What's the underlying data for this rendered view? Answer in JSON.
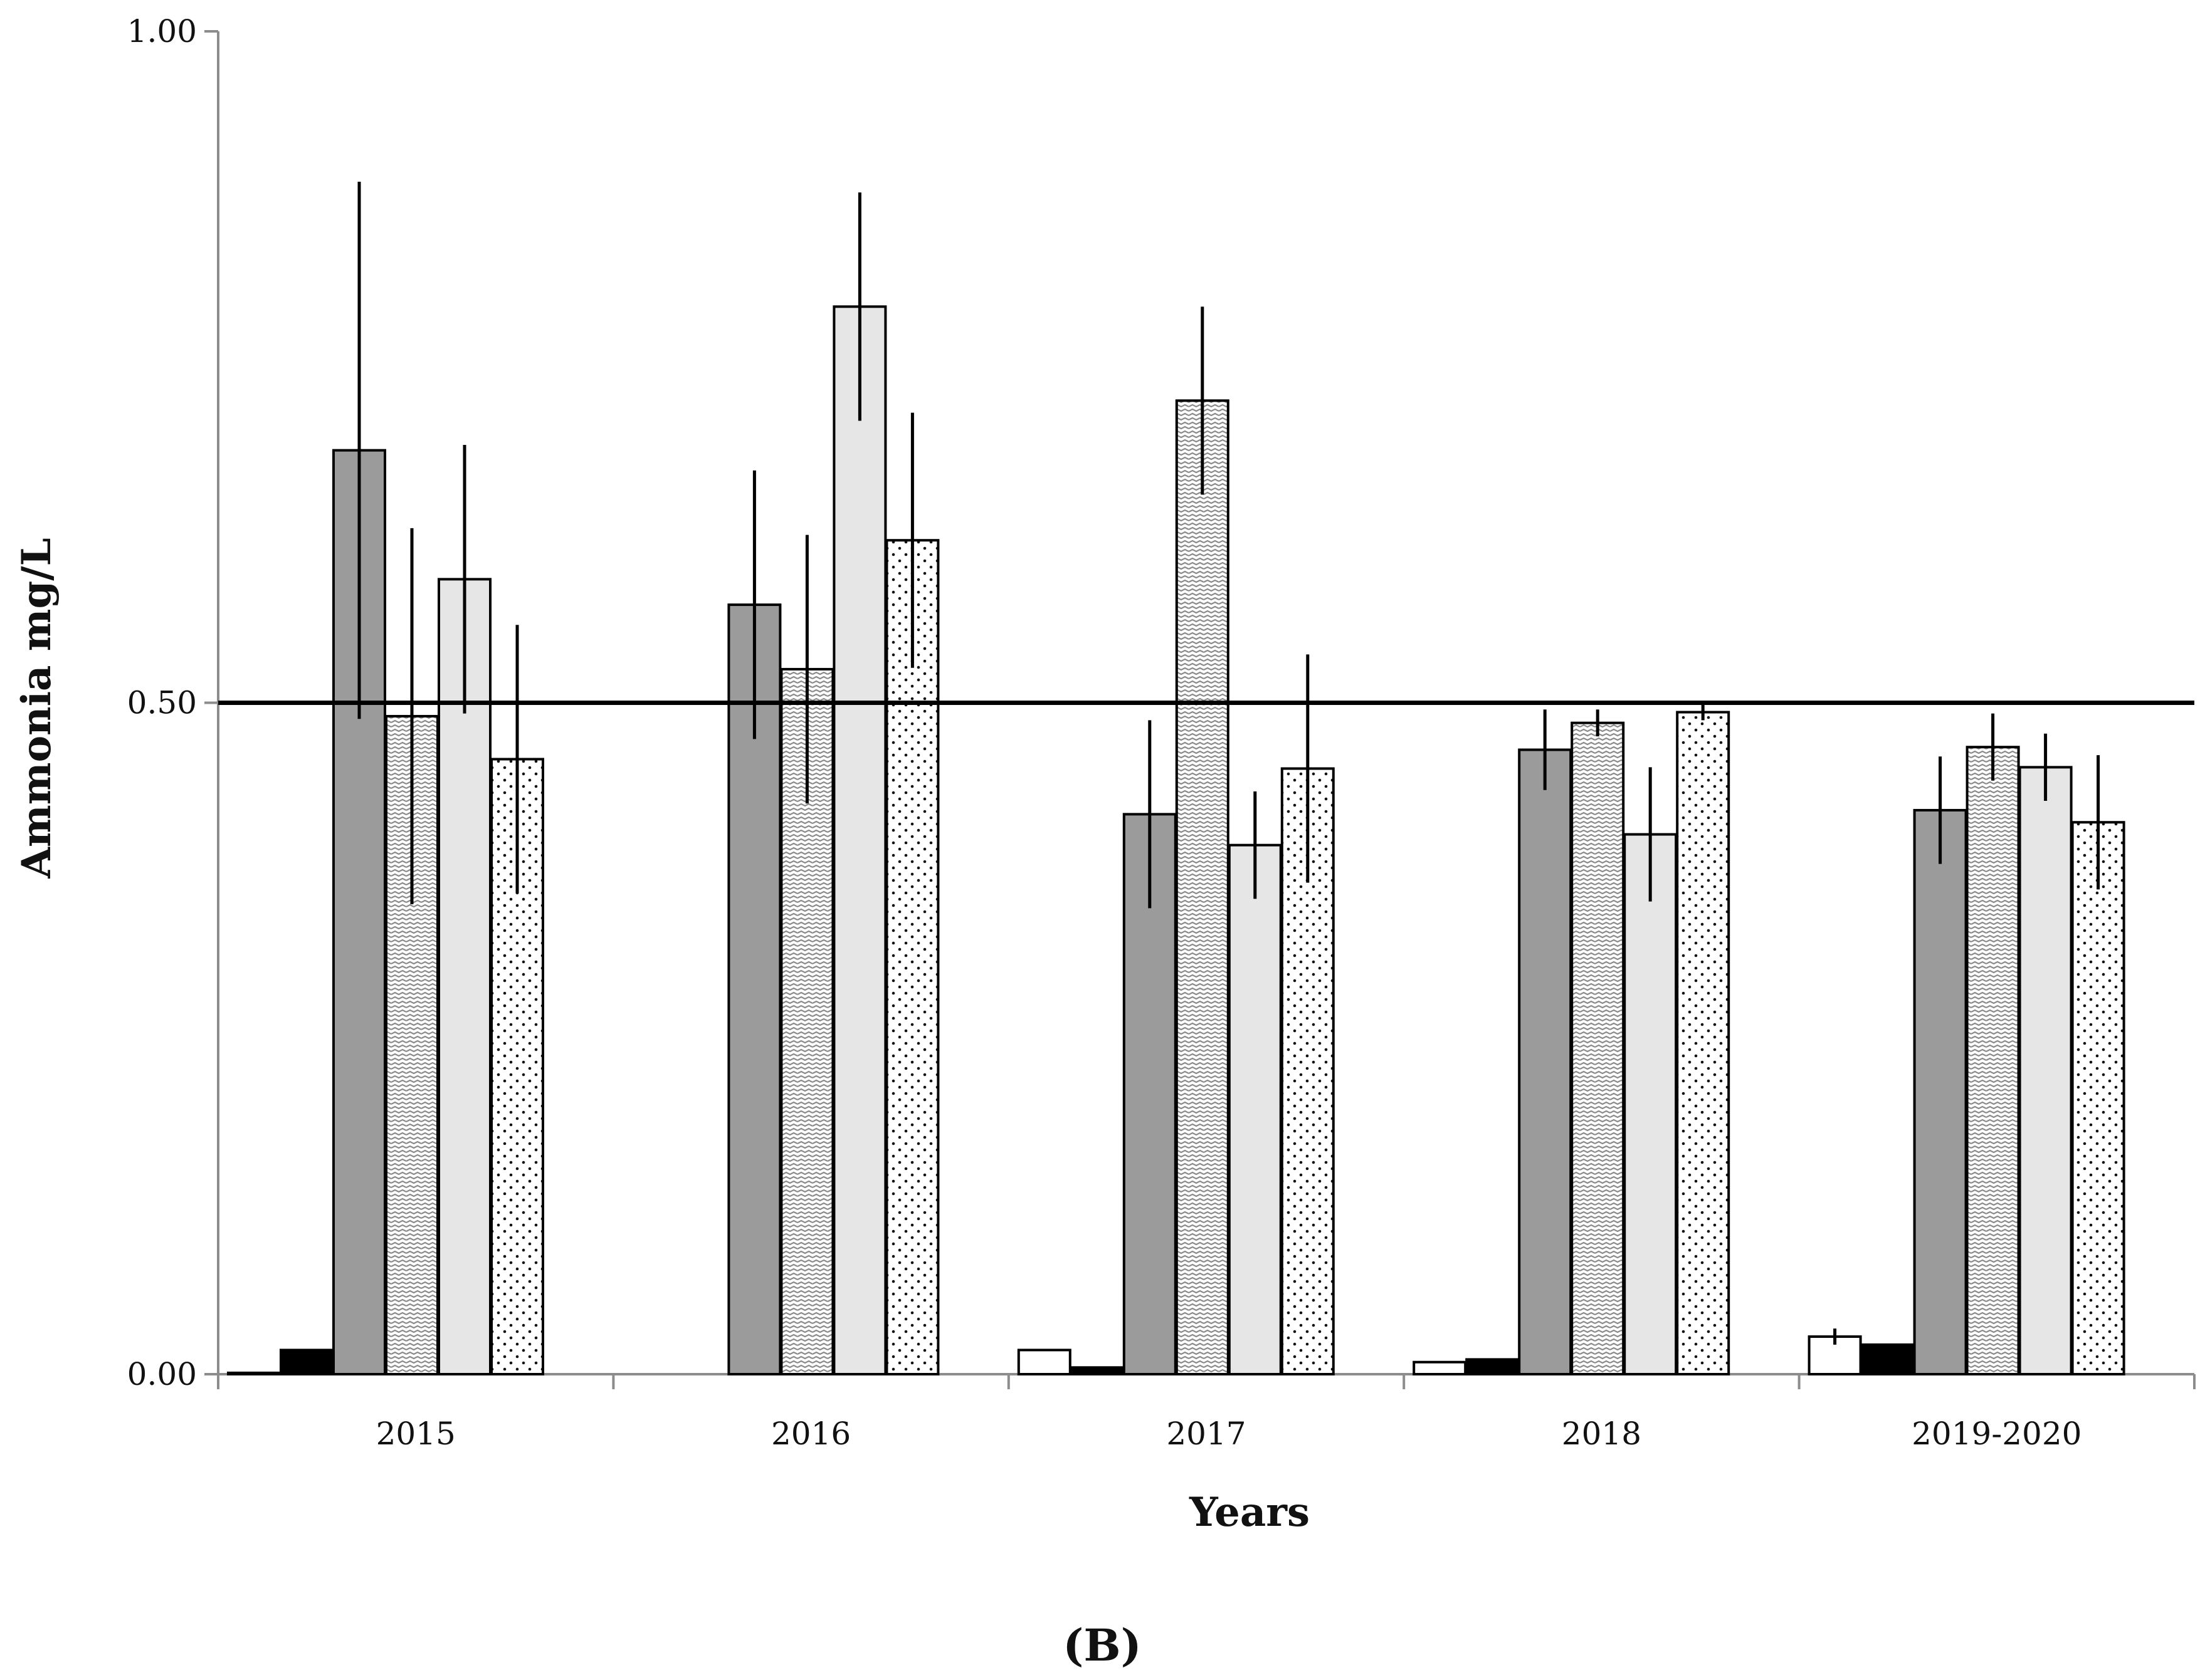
{
  "chart_data": {
    "type": "bar",
    "title": "",
    "panel_label": "(B)",
    "xlabel": "Years",
    "ylabel": "Ammonia mg/L",
    "ylim": [
      0,
      1.0
    ],
    "y_ticks": [
      "0.00",
      "0.50",
      "1.00"
    ],
    "y_tick_values": [
      0,
      0.5,
      1.0
    ],
    "categories": [
      "2015",
      "2016",
      "2017",
      "2018",
      "2019-2020"
    ],
    "reference_line": {
      "value": 0.5
    },
    "grid": false,
    "legend": "none",
    "series": [
      {
        "pattern": "white",
        "values": [
          0.001,
          null,
          0.018,
          0.009,
          0.028
        ],
        "errors": [
          null,
          null,
          null,
          null,
          0.006
        ]
      },
      {
        "pattern": "black",
        "values": [
          0.018,
          null,
          0.005,
          0.011,
          0.022
        ],
        "errors": [
          null,
          null,
          null,
          null,
          null
        ]
      },
      {
        "pattern": "dark-gray",
        "values": [
          0.688,
          0.573,
          0.417,
          0.465,
          0.42
        ],
        "errors": [
          0.2,
          0.1,
          0.07,
          0.03,
          0.04
        ]
      },
      {
        "pattern": "zigzag",
        "values": [
          0.49,
          0.525,
          0.725,
          0.485,
          0.467
        ],
        "errors": [
          0.14,
          0.1,
          0.07,
          0.01,
          0.025
        ]
      },
      {
        "pattern": "light-gray",
        "values": [
          0.592,
          0.795,
          0.394,
          0.402,
          0.452
        ],
        "errors": [
          0.1,
          0.085,
          0.04,
          0.05,
          0.025
        ]
      },
      {
        "pattern": "dotted",
        "values": [
          0.458,
          0.621,
          0.451,
          0.493,
          0.411
        ],
        "errors": [
          0.1,
          0.095,
          0.085,
          0.006,
          0.05
        ]
      }
    ],
    "colors": {
      "white": "#ffffff",
      "black": "#000000",
      "dark-gray": "#9b9b9b",
      "light-gray": "#e6e6e6",
      "axis": "#8c8c8c",
      "outline": "#000000"
    }
  }
}
